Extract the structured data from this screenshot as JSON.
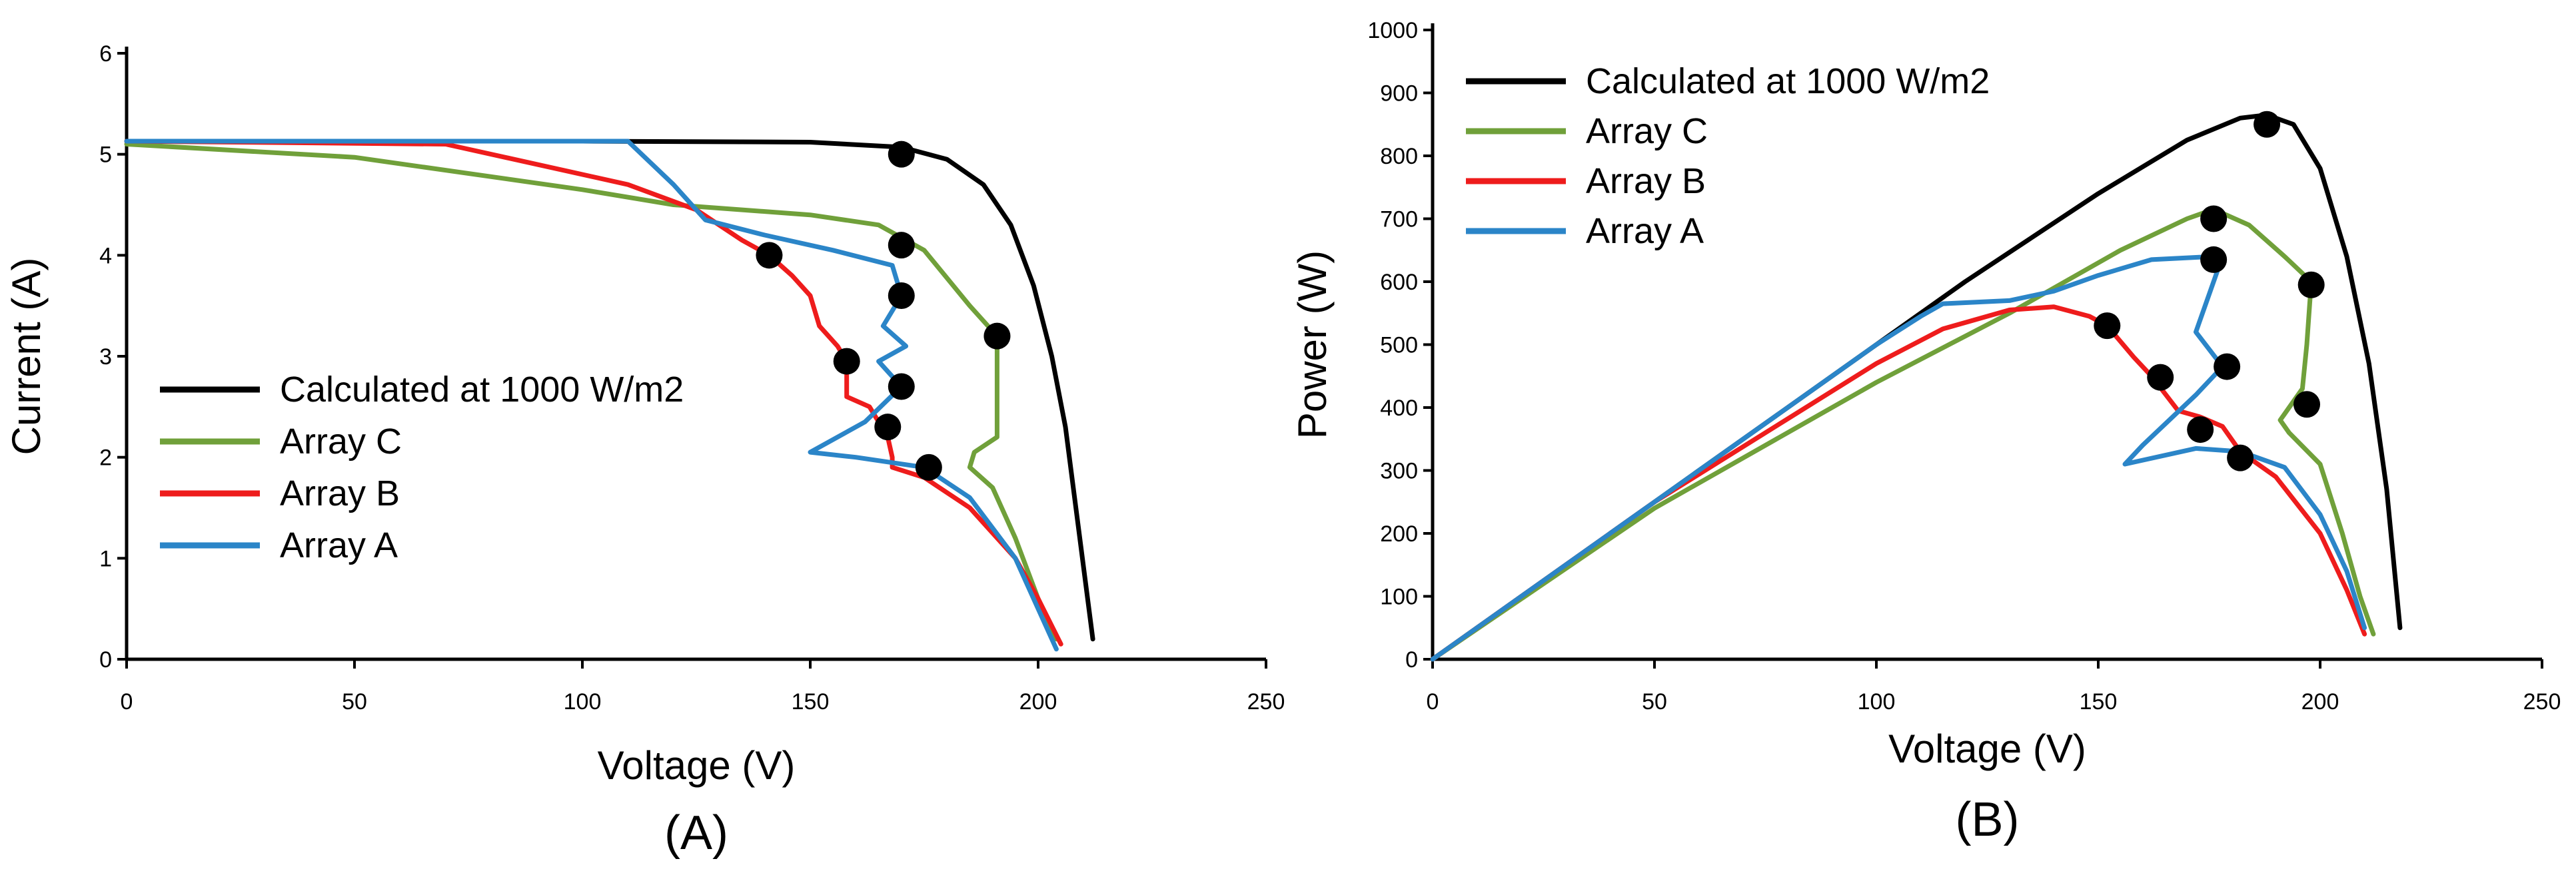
{
  "colors": {
    "calculated": "#000000",
    "array_c": "#70a03a",
    "array_b": "#ee1c1c",
    "array_a": "#2b85c8",
    "marker": "#000000"
  },
  "chart_data": [
    {
      "panel_label": "(A)",
      "type": "line",
      "xlabel": "Voltage (V)",
      "ylabel": "Current (A)",
      "xlim": [
        0,
        250
      ],
      "ylim": [
        0,
        6
      ],
      "xticks": [
        0,
        50,
        100,
        150,
        200,
        250
      ],
      "yticks": [
        0,
        1,
        2,
        3,
        4,
        5,
        6
      ],
      "grid": false,
      "legend_position": "lower-left",
      "series": [
        {
          "name": "Calculated at 1000 W/m2",
          "color_key": "calculated",
          "points": [
            [
              0,
              5.13
            ],
            [
              100,
              5.13
            ],
            [
              150,
              5.12
            ],
            [
              170,
              5.07
            ],
            [
              180,
              4.95
            ],
            [
              188,
              4.7
            ],
            [
              194,
              4.3
            ],
            [
              199,
              3.7
            ],
            [
              203,
              3.0
            ],
            [
              206,
              2.3
            ],
            [
              208,
              1.6
            ],
            [
              210,
              0.9
            ],
            [
              212,
              0.2
            ]
          ],
          "markers": [
            [
              170,
              5.0
            ]
          ]
        },
        {
          "name": "Array C",
          "color_key": "array_c",
          "points": [
            [
              0,
              5.1
            ],
            [
              50,
              4.97
            ],
            [
              100,
              4.65
            ],
            [
              120,
              4.5
            ],
            [
              150,
              4.4
            ],
            [
              165,
              4.3
            ],
            [
              175,
              4.05
            ],
            [
              185,
              3.5
            ],
            [
              191,
              3.2
            ],
            [
              191,
              2.2
            ],
            [
              186,
              2.05
            ],
            [
              185,
              1.9
            ],
            [
              190,
              1.7
            ],
            [
              195,
              1.2
            ],
            [
              200,
              0.6
            ],
            [
              204,
              0.2
            ]
          ],
          "markers": [
            [
              170,
              4.1
            ],
            [
              191,
              3.2
            ]
          ]
        },
        {
          "name": "Array B",
          "color_key": "array_b",
          "points": [
            [
              0,
              5.13
            ],
            [
              70,
              5.1
            ],
            [
              90,
              4.9
            ],
            [
              110,
              4.7
            ],
            [
              125,
              4.45
            ],
            [
              135,
              4.15
            ],
            [
              141,
              4.0
            ],
            [
              146,
              3.8
            ],
            [
              150,
              3.6
            ],
            [
              152,
              3.3
            ],
            [
              156,
              3.1
            ],
            [
              158,
              2.95
            ],
            [
              158,
              2.6
            ],
            [
              163,
              2.5
            ],
            [
              165,
              2.35
            ],
            [
              167,
              2.2
            ],
            [
              168,
              2.0
            ],
            [
              168,
              1.9
            ],
            [
              175,
              1.8
            ],
            [
              185,
              1.5
            ],
            [
              195,
              1.0
            ],
            [
              200,
              0.6
            ],
            [
              205,
              0.15
            ]
          ],
          "markers": [
            [
              141,
              4.0
            ],
            [
              158,
              2.95
            ],
            [
              167,
              2.3
            ]
          ]
        },
        {
          "name": "Array A",
          "color_key": "array_a",
          "points": [
            [
              0,
              5.13
            ],
            [
              110,
              5.13
            ],
            [
              120,
              4.7
            ],
            [
              127,
              4.35
            ],
            [
              140,
              4.2
            ],
            [
              155,
              4.05
            ],
            [
              168,
              3.9
            ],
            [
              170,
              3.6
            ],
            [
              166,
              3.3
            ],
            [
              171,
              3.1
            ],
            [
              165,
              2.95
            ],
            [
              170,
              2.7
            ],
            [
              162,
              2.35
            ],
            [
              150,
              2.05
            ],
            [
              160,
              2.0
            ],
            [
              175,
              1.9
            ],
            [
              185,
              1.6
            ],
            [
              195,
              1.0
            ],
            [
              200,
              0.5
            ],
            [
              204,
              0.1
            ]
          ],
          "markers": [
            [
              170,
              3.6
            ],
            [
              170,
              2.7
            ],
            [
              176,
              1.9
            ]
          ]
        }
      ]
    },
    {
      "panel_label": "(B)",
      "type": "line",
      "xlabel": "Voltage (V)",
      "ylabel": "Power (W)",
      "xlim": [
        0,
        250
      ],
      "ylim": [
        0,
        1000
      ],
      "xticks": [
        0,
        50,
        100,
        150,
        200,
        250
      ],
      "yticks": [
        0,
        100,
        200,
        300,
        400,
        500,
        600,
        700,
        800,
        900,
        1000
      ],
      "grid": false,
      "legend_position": "top-left",
      "series": [
        {
          "name": "Calculated at 1000 W/m2",
          "color_key": "calculated",
          "points": [
            [
              0,
              0
            ],
            [
              50,
              250
            ],
            [
              100,
              500
            ],
            [
              120,
              600
            ],
            [
              150,
              740
            ],
            [
              170,
              825
            ],
            [
              182,
              860
            ],
            [
              188,
              865
            ],
            [
              194,
              850
            ],
            [
              200,
              780
            ],
            [
              206,
              640
            ],
            [
              211,
              470
            ],
            [
              215,
              270
            ],
            [
              218,
              50
            ]
          ],
          "markers": [
            [
              188,
              850
            ]
          ]
        },
        {
          "name": "Array C",
          "color_key": "array_c",
          "points": [
            [
              0,
              0
            ],
            [
              50,
              240
            ],
            [
              100,
              440
            ],
            [
              130,
              550
            ],
            [
              155,
              650
            ],
            [
              170,
              700
            ],
            [
              176,
              715
            ],
            [
              184,
              690
            ],
            [
              192,
              640
            ],
            [
              198,
              600
            ],
            [
              197,
              500
            ],
            [
              196,
              430
            ],
            [
              191,
              380
            ],
            [
              193,
              360
            ],
            [
              200,
              310
            ],
            [
              205,
              200
            ],
            [
              209,
              100
            ],
            [
              212,
              40
            ]
          ],
          "markers": [
            [
              176,
              700
            ],
            [
              198,
              595
            ],
            [
              197,
              405
            ]
          ]
        },
        {
          "name": "Array B",
          "color_key": "array_b",
          "points": [
            [
              0,
              0
            ],
            [
              50,
              250
            ],
            [
              100,
              470
            ],
            [
              115,
              525
            ],
            [
              130,
              555
            ],
            [
              140,
              560
            ],
            [
              148,
              545
            ],
            [
              152,
              530
            ],
            [
              158,
              480
            ],
            [
              162,
              450
            ],
            [
              168,
              395
            ],
            [
              173,
              385
            ],
            [
              178,
              370
            ],
            [
              182,
              330
            ],
            [
              190,
              290
            ],
            [
              200,
              200
            ],
            [
              206,
              110
            ],
            [
              210,
              40
            ]
          ],
          "markers": [
            [
              152,
              530
            ],
            [
              164,
              448
            ],
            [
              173,
              365
            ]
          ]
        },
        {
          "name": "Array A",
          "color_key": "array_a",
          "points": [
            [
              0,
              0
            ],
            [
              50,
              250
            ],
            [
              100,
              500
            ],
            [
              110,
              545
            ],
            [
              115,
              565
            ],
            [
              130,
              570
            ],
            [
              140,
              585
            ],
            [
              150,
              610
            ],
            [
              162,
              635
            ],
            [
              176,
              640
            ],
            [
              177,
              620
            ],
            [
              172,
              520
            ],
            [
              178,
              465
            ],
            [
              172,
              420
            ],
            [
              160,
              340
            ],
            [
              156,
              310
            ],
            [
              172,
              335
            ],
            [
              182,
              330
            ],
            [
              192,
              305
            ],
            [
              200,
              230
            ],
            [
              206,
              140
            ],
            [
              210,
              50
            ]
          ],
          "markers": [
            [
              176,
              635
            ],
            [
              179,
              465
            ],
            [
              182,
              320
            ]
          ]
        }
      ]
    }
  ]
}
